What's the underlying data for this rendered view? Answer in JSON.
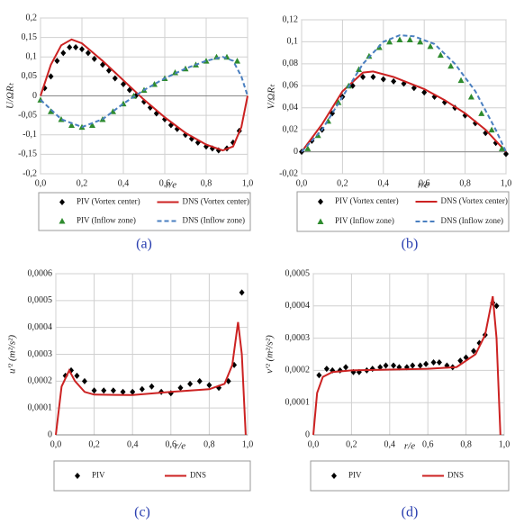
{
  "chart_data": [
    {
      "type": "line",
      "caption": "(a)",
      "x_label": "r/e",
      "y_label": "U/ΩRₜ",
      "grid": true,
      "xlim": [
        0,
        1
      ],
      "ylim": [
        -0.2,
        0.2
      ],
      "xticks": [
        {
          "value": 0,
          "label": "0,0"
        },
        {
          "value": 0.2,
          "label": "0,2"
        },
        {
          "value": 0.4,
          "label": "0,4"
        },
        {
          "value": 0.6,
          "label": "0,6"
        },
        {
          "value": 0.8,
          "label": "0,8"
        },
        {
          "value": 1,
          "label": "1,0"
        }
      ],
      "yticks": [
        {
          "value": -0.2,
          "label": "-0,2"
        },
        {
          "value": -0.15,
          "label": "-0,15"
        },
        {
          "value": -0.1,
          "label": "-0,1"
        },
        {
          "value": -0.05,
          "label": "-0,05"
        },
        0,
        {
          "value": 0.05,
          "label": "0,05"
        },
        {
          "value": 0.1,
          "label": "0,1"
        },
        {
          "value": 0.15,
          "label": "0,15"
        },
        {
          "value": 0.2,
          "label": "0,2"
        }
      ],
      "series": [
        {
          "name": "PIV (Vortex center)",
          "color": "#000000",
          "marker": "diamond",
          "x": [
            0.02,
            0.05,
            0.08,
            0.11,
            0.14,
            0.17,
            0.2,
            0.23,
            0.26,
            0.3,
            0.33,
            0.36,
            0.4,
            0.43,
            0.46,
            0.5,
            0.53,
            0.56,
            0.6,
            0.63,
            0.66,
            0.7,
            0.73,
            0.76,
            0.8,
            0.83,
            0.86,
            0.9,
            0.93,
            0.96
          ],
          "values": [
            0.02,
            0.05,
            0.09,
            0.11,
            0.125,
            0.125,
            0.12,
            0.11,
            0.095,
            0.08,
            0.065,
            0.045,
            0.03,
            0.015,
            0,
            -0.015,
            -0.03,
            -0.045,
            -0.06,
            -0.075,
            -0.085,
            -0.1,
            -0.11,
            -0.12,
            -0.13,
            -0.135,
            -0.14,
            -0.135,
            -0.12,
            -0.09
          ]
        },
        {
          "name": "DNS (Vortex center)",
          "color": "#cc2222",
          "dash": false,
          "x": [
            0,
            0.05,
            0.1,
            0.15,
            0.2,
            0.3,
            0.4,
            0.5,
            0.6,
            0.7,
            0.8,
            0.88,
            0.93,
            0.97,
            1
          ],
          "values": [
            0,
            0.08,
            0.13,
            0.145,
            0.135,
            0.09,
            0.04,
            -0.01,
            -0.055,
            -0.095,
            -0.125,
            -0.14,
            -0.13,
            -0.08,
            0
          ]
        },
        {
          "name": "PIV (Inflow zone)",
          "color": "#2e8b2e",
          "marker": "triangle",
          "x": [
            0,
            0.05,
            0.1,
            0.15,
            0.2,
            0.25,
            0.3,
            0.35,
            0.4,
            0.45,
            0.5,
            0.55,
            0.6,
            0.65,
            0.7,
            0.75,
            0.8,
            0.85,
            0.9,
            0.95
          ],
          "values": [
            -0.01,
            -0.04,
            -0.06,
            -0.075,
            -0.08,
            -0.075,
            -0.06,
            -0.04,
            -0.02,
            0,
            0.015,
            0.03,
            0.045,
            0.06,
            0.07,
            0.08,
            0.09,
            0.1,
            0.1,
            0.09
          ]
        },
        {
          "name": "DNS (Inflow zone)",
          "color": "#4a7fc0",
          "dash": true,
          "x": [
            0,
            0.1,
            0.2,
            0.3,
            0.4,
            0.5,
            0.6,
            0.7,
            0.8,
            0.88,
            0.93,
            0.97,
            1
          ],
          "values": [
            -0.01,
            -0.06,
            -0.08,
            -0.06,
            -0.02,
            0.015,
            0.045,
            0.07,
            0.09,
            0.1,
            0.09,
            0.05,
            0
          ]
        }
      ]
    },
    {
      "type": "line",
      "caption": "(b)",
      "x_label": "r/e",
      "y_label": "V/ΩRₜ",
      "grid": true,
      "xlim": [
        0,
        1
      ],
      "ylim": [
        -0.02,
        0.12
      ],
      "xticks": [
        {
          "value": 0,
          "label": "0,0"
        },
        {
          "value": 0.2,
          "label": "0,2"
        },
        {
          "value": 0.4,
          "label": "0,4"
        },
        {
          "value": 0.6,
          "label": "0,6"
        },
        {
          "value": 0.8,
          "label": "0,8"
        },
        {
          "value": 1,
          "label": "1,0"
        }
      ],
      "yticks": [
        {
          "value": -0.02,
          "label": "-0,02"
        },
        0,
        {
          "value": 0.02,
          "label": "0,02"
        },
        {
          "value": 0.04,
          "label": "0,04"
        },
        {
          "value": 0.06,
          "label": "0,06"
        },
        {
          "value": 0.08,
          "label": "0,08"
        },
        {
          "value": 0.1,
          "label": "0,1"
        },
        {
          "value": 0.12,
          "label": "0,12"
        }
      ],
      "series": [
        {
          "name": "PIV (Vortex center)",
          "color": "#000000",
          "marker": "diamond",
          "x": [
            0,
            0.05,
            0.1,
            0.15,
            0.2,
            0.25,
            0.3,
            0.35,
            0.4,
            0.45,
            0.5,
            0.55,
            0.6,
            0.65,
            0.7,
            0.75,
            0.8,
            0.85,
            0.9,
            0.95,
            1
          ],
          "values": [
            0,
            0.01,
            0.02,
            0.035,
            0.05,
            0.06,
            0.068,
            0.068,
            0.066,
            0.064,
            0.062,
            0.058,
            0.054,
            0.05,
            0.045,
            0.04,
            0.033,
            0.026,
            0.017,
            0.008,
            -0.002
          ]
        },
        {
          "name": "DNS (Vortex center)",
          "color": "#cc2222",
          "dash": false,
          "x": [
            0,
            0.1,
            0.2,
            0.3,
            0.35,
            0.45,
            0.6,
            0.7,
            0.8,
            0.9,
            1
          ],
          "values": [
            0,
            0.025,
            0.055,
            0.072,
            0.073,
            0.068,
            0.057,
            0.047,
            0.035,
            0.02,
            0
          ]
        },
        {
          "name": "PIV (Inflow zone)",
          "color": "#2e8b2e",
          "marker": "triangle",
          "x": [
            0.03,
            0.08,
            0.13,
            0.18,
            0.23,
            0.28,
            0.33,
            0.38,
            0.43,
            0.48,
            0.53,
            0.58,
            0.63,
            0.68,
            0.73,
            0.78,
            0.83,
            0.88,
            0.93,
            0.98
          ],
          "values": [
            0.003,
            0.015,
            0.028,
            0.045,
            0.06,
            0.075,
            0.087,
            0.095,
            0.1,
            0.102,
            0.102,
            0.1,
            0.096,
            0.088,
            0.078,
            0.065,
            0.05,
            0.035,
            0.02,
            0.003
          ]
        },
        {
          "name": "DNS (Inflow zone)",
          "color": "#4a7fc0",
          "dash": true,
          "x": [
            0,
            0.1,
            0.2,
            0.3,
            0.4,
            0.48,
            0.55,
            0.65,
            0.75,
            0.85,
            0.95,
            1
          ],
          "values": [
            0,
            0.02,
            0.05,
            0.08,
            0.1,
            0.106,
            0.105,
            0.098,
            0.08,
            0.055,
            0.02,
            0
          ]
        }
      ]
    },
    {
      "type": "line",
      "caption": "(c)",
      "x_label": "r/e",
      "y_label": "u'² (m²/s²)",
      "grid": true,
      "xlim": [
        0,
        1
      ],
      "ylim": [
        0,
        0.0006
      ],
      "xticks": [
        {
          "value": 0,
          "label": "0,0"
        },
        {
          "value": 0.2,
          "label": "0,2"
        },
        {
          "value": 0.4,
          "label": "0,4"
        },
        {
          "value": 0.6,
          "label": "0,6"
        },
        {
          "value": 0.8,
          "label": "0,8"
        },
        {
          "value": 1,
          "label": "1,0"
        }
      ],
      "yticks": [
        0,
        {
          "value": 0.0001,
          "label": "0,0001"
        },
        {
          "value": 0.0002,
          "label": "0,0002"
        },
        {
          "value": 0.0003,
          "label": "0,0003"
        },
        {
          "value": 0.0004,
          "label": "0,0004"
        },
        {
          "value": 0.0005,
          "label": "0,0005"
        },
        {
          "value": 0.0006,
          "label": "0,0006"
        }
      ],
      "series": [
        {
          "name": "PIV",
          "color": "#000000",
          "marker": "diamond",
          "x": [
            0.05,
            0.08,
            0.11,
            0.15,
            0.2,
            0.25,
            0.3,
            0.35,
            0.4,
            0.45,
            0.5,
            0.55,
            0.6,
            0.65,
            0.7,
            0.75,
            0.8,
            0.85,
            0.9,
            0.93,
            0.97
          ],
          "values": [
            0.00022,
            0.00024,
            0.00022,
            0.0002,
            0.000165,
            0.000165,
            0.000165,
            0.00016,
            0.00016,
            0.00017,
            0.00018,
            0.00016,
            0.000155,
            0.000175,
            0.00019,
            0.0002,
            0.000185,
            0.000175,
            0.0002,
            0.00026,
            0.00053
          ]
        },
        {
          "name": "DNS",
          "color": "#cc2222",
          "dash": false,
          "x": [
            0,
            0.03,
            0.07,
            0.1,
            0.15,
            0.2,
            0.4,
            0.6,
            0.8,
            0.88,
            0.92,
            0.95,
            0.97,
            0.99
          ],
          "values": [
            0,
            0.00018,
            0.00024,
            0.0002,
            0.00016,
            0.00015,
            0.000148,
            0.00016,
            0.00017,
            0.00019,
            0.00026,
            0.00042,
            0.0003,
            0
          ]
        }
      ]
    },
    {
      "type": "line",
      "caption": "(d)",
      "x_label": "r/e",
      "y_label": "v'² (m²/s²)",
      "grid": true,
      "xlim": [
        0,
        1
      ],
      "ylim": [
        0,
        0.0005
      ],
      "xticks": [
        {
          "value": 0,
          "label": "0,0"
        },
        {
          "value": 0.2,
          "label": "0,2"
        },
        {
          "value": 0.4,
          "label": "0,4"
        },
        {
          "value": 0.6,
          "label": "0,6"
        },
        {
          "value": 0.8,
          "label": "0,8"
        },
        {
          "value": 1,
          "label": "1,0"
        }
      ],
      "yticks": [
        0,
        {
          "value": 0.0001,
          "label": "0,0001"
        },
        {
          "value": 0.0002,
          "label": "0,0002"
        },
        {
          "value": 0.0003,
          "label": "0,0003"
        },
        {
          "value": 0.0004,
          "label": "0,0004"
        },
        {
          "value": 0.0005,
          "label": "0,0005"
        }
      ],
      "series": [
        {
          "name": "PIV",
          "color": "#000000",
          "marker": "diamond",
          "x": [
            0.03,
            0.07,
            0.1,
            0.14,
            0.17,
            0.21,
            0.24,
            0.28,
            0.31,
            0.35,
            0.38,
            0.42,
            0.45,
            0.49,
            0.52,
            0.56,
            0.59,
            0.63,
            0.66,
            0.7,
            0.73,
            0.77,
            0.8,
            0.84,
            0.87,
            0.9,
            0.94,
            0.96
          ],
          "values": [
            0.000185,
            0.000205,
            0.0002,
            0.0002,
            0.00021,
            0.000195,
            0.000195,
            0.0002,
            0.000205,
            0.00021,
            0.000215,
            0.000215,
            0.00021,
            0.00021,
            0.000215,
            0.000215,
            0.00022,
            0.000225,
            0.000225,
            0.000215,
            0.00021,
            0.00023,
            0.00024,
            0.00026,
            0.000285,
            0.00031,
            0.00041,
            0.0004
          ]
        },
        {
          "name": "DNS",
          "color": "#cc2222",
          "dash": false,
          "x": [
            0,
            0.02,
            0.05,
            0.1,
            0.2,
            0.6,
            0.75,
            0.85,
            0.9,
            0.94,
            0.96,
            0.98
          ],
          "values": [
            0,
            0.00013,
            0.00018,
            0.000195,
            0.0002,
            0.000205,
            0.00021,
            0.00025,
            0.00031,
            0.00043,
            0.0003,
            0
          ]
        }
      ]
    }
  ]
}
